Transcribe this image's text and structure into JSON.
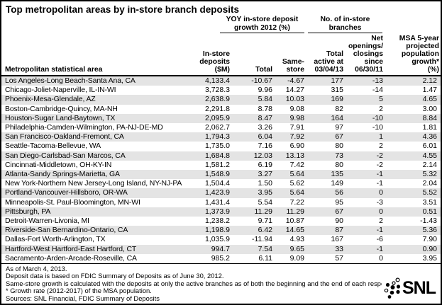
{
  "title": "Top metropolitan areas by in-store branch deposits",
  "table": {
    "column_groups": [
      {
        "label": "YOY in-store deposit\ngrowth 2012 (%)"
      },
      {
        "label": "No. of in-store\nbranches"
      }
    ],
    "headers": [
      "Metropolitan statistical area",
      "In-store\ndeposits\n($M)",
      "Total",
      "Same-\nstore",
      "Total\nactive at\n03/04/13",
      "Net\nopenings/\nclosings\nsince\n06/30/11",
      "MSA 5-year\nprojected\npopulation\ngrowth*\n(%)"
    ],
    "rows": [
      [
        "Los Angeles-Long Beach-Santa Ana, CA",
        "4,133.4",
        "-10.67",
        "-4.67",
        "177",
        "-13",
        "2.12"
      ],
      [
        "Chicago-Joliet-Naperville, IL-IN-WI",
        "3,728.3",
        "9.96",
        "14.27",
        "315",
        "-14",
        "1.47"
      ],
      [
        "Phoenix-Mesa-Glendale, AZ",
        "2,638.9",
        "5.84",
        "10.03",
        "169",
        "5",
        "4.65"
      ],
      [
        "Boston-Cambridge-Quincy, MA-NH",
        "2,291.8",
        "8.78",
        "9.08",
        "82",
        "2",
        "3.00"
      ],
      [
        "Houston-Sugar Land-Baytown, TX",
        "2,095.9",
        "8.47",
        "9.98",
        "164",
        "-10",
        "8.84"
      ],
      [
        "Philadelphia-Camden-Wilmington, PA-NJ-DE-MD",
        "2,062.7",
        "3.26",
        "7.91",
        "97",
        "-10",
        "1.81"
      ],
      [
        "San Francisco-Oakland-Fremont, CA",
        "1,794.3",
        "6.04",
        "7.92",
        "67",
        "1",
        "4.36"
      ],
      [
        "Seattle-Tacoma-Bellevue, WA",
        "1,735.0",
        "7.16",
        "6.90",
        "80",
        "2",
        "6.01"
      ],
      [
        "San Diego-Carlsbad-San Marcos, CA",
        "1,684.8",
        "12.03",
        "13.13",
        "73",
        "-2",
        "4.55"
      ],
      [
        "Cincinnati-Middletown, OH-KY-IN",
        "1,581.2",
        "6.19",
        "7.42",
        "80",
        "-2",
        "2.14"
      ],
      [
        "Atlanta-Sandy Springs-Marietta, GA",
        "1,548.9",
        "3.27",
        "5.64",
        "135",
        "-1",
        "5.32"
      ],
      [
        "New York-Northern New Jersey-Long Island, NY-NJ-PA",
        "1,504.4",
        "1.50",
        "5.62",
        "149",
        "-1",
        "2.04"
      ],
      [
        "Portland-Vancouver-Hillsboro, OR-WA",
        "1,423.9",
        "3.95",
        "5.64",
        "56",
        "0",
        "5.52"
      ],
      [
        "Minneapolis-St. Paul-Bloomington, MN-WI",
        "1,431.4",
        "5.54",
        "7.22",
        "95",
        "-3",
        "3.51"
      ],
      [
        "Pittsburgh, PA",
        "1,373.9",
        "11.29",
        "11.29",
        "67",
        "0",
        "0.51"
      ],
      [
        "Detroit-Warren-Livonia, MI",
        "1,238.2",
        "9.71",
        "10.87",
        "90",
        "2",
        "-1.43"
      ],
      [
        "Riverside-San Bernardino-Ontario, CA",
        "1,198.9",
        "6.42",
        "14.65",
        "87",
        "-1",
        "5.36"
      ],
      [
        "Dallas-Fort Worth-Arlington, TX",
        "1,035.9",
        "-11.94",
        "4.93",
        "167",
        "-6",
        "7.90"
      ],
      [
        "Hartford-West Hartford-East Hartford, CT",
        "994.7",
        "7.54",
        "9.65",
        "33",
        "-1",
        "0.90"
      ],
      [
        "Sacramento-Arden-Arcade-Roseville, CA",
        "985.2",
        "6.11",
        "9.09",
        "57",
        "0",
        "3.95"
      ]
    ]
  },
  "footnotes": [
    "As of March 4, 2013.",
    "Deposit data is based on FDIC Summary of Deposits as of June 30, 2012.",
    "Same-store growth is calculated with the deposits at only the active branches as of both the beginning and the end of each respective period.",
    "* Growth rate (2012-2017) of the MSA population.",
    "Sources: SNL Financial, FDIC Summary of Deposits"
  ],
  "logo": {
    "text": "SNL"
  },
  "colors": {
    "row_stripe": "#e4e4e4",
    "border": "#000000",
    "text": "#000000",
    "background": "#ffffff"
  }
}
